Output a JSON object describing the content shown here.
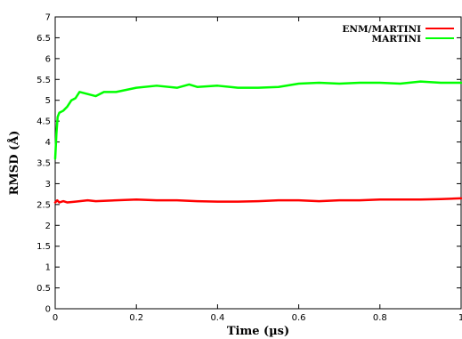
{
  "chart_data": {
    "type": "line",
    "xlabel": "Time (µs)",
    "ylabel": "RMSD (Å)",
    "xlim": [
      0,
      1
    ],
    "ylim": [
      0,
      7
    ],
    "x_ticks": [
      {
        "value": 0,
        "label": "0"
      },
      {
        "value": 0.2,
        "label": "0.2"
      },
      {
        "value": 0.4,
        "label": "0.4"
      },
      {
        "value": 0.6,
        "label": "0.6"
      },
      {
        "value": 0.8,
        "label": "0.8"
      },
      {
        "value": 1,
        "label": "1"
      }
    ],
    "y_ticks": [
      {
        "value": 0,
        "label": "0"
      },
      {
        "value": 0.5,
        "label": "0.5"
      },
      {
        "value": 1,
        "label": "1"
      },
      {
        "value": 1.5,
        "label": "1.5"
      },
      {
        "value": 2,
        "label": "2"
      },
      {
        "value": 2.5,
        "label": "2.5"
      },
      {
        "value": 3,
        "label": "3"
      },
      {
        "value": 3.5,
        "label": "3.5"
      },
      {
        "value": 4,
        "label": "4"
      },
      {
        "value": 4.5,
        "label": "4.5"
      },
      {
        "value": 5,
        "label": "5"
      },
      {
        "value": 5.5,
        "label": "5.5"
      },
      {
        "value": 6,
        "label": "6"
      },
      {
        "value": 6.5,
        "label": "6.5"
      },
      {
        "value": 7,
        "label": "7"
      }
    ],
    "grid": false,
    "legend_position": "top-right",
    "series": [
      {
        "name": "ENM/MARTINI",
        "color": "#ff0000",
        "x": [
          0,
          0.005,
          0.01,
          0.02,
          0.03,
          0.05,
          0.08,
          0.1,
          0.15,
          0.2,
          0.25,
          0.3,
          0.35,
          0.4,
          0.45,
          0.5,
          0.55,
          0.6,
          0.65,
          0.7,
          0.75,
          0.8,
          0.85,
          0.9,
          0.95,
          1.0
        ],
        "y": [
          2.55,
          2.6,
          2.55,
          2.58,
          2.55,
          2.57,
          2.6,
          2.58,
          2.6,
          2.62,
          2.6,
          2.6,
          2.58,
          2.57,
          2.57,
          2.58,
          2.6,
          2.6,
          2.58,
          2.6,
          2.6,
          2.62,
          2.62,
          2.62,
          2.63,
          2.65
        ]
      },
      {
        "name": "MARTINI",
        "color": "#00ff00",
        "x": [
          0,
          0.003,
          0.006,
          0.01,
          0.02,
          0.03,
          0.04,
          0.05,
          0.06,
          0.08,
          0.1,
          0.12,
          0.15,
          0.2,
          0.25,
          0.3,
          0.33,
          0.35,
          0.4,
          0.45,
          0.5,
          0.55,
          0.6,
          0.65,
          0.7,
          0.75,
          0.8,
          0.85,
          0.9,
          0.95,
          1.0
        ],
        "y": [
          3.6,
          4.2,
          4.6,
          4.7,
          4.75,
          4.85,
          5.0,
          5.05,
          5.2,
          5.15,
          5.1,
          5.2,
          5.2,
          5.3,
          5.35,
          5.3,
          5.38,
          5.32,
          5.35,
          5.3,
          5.3,
          5.32,
          5.4,
          5.42,
          5.4,
          5.42,
          5.42,
          5.4,
          5.45,
          5.42,
          5.42
        ]
      }
    ]
  }
}
